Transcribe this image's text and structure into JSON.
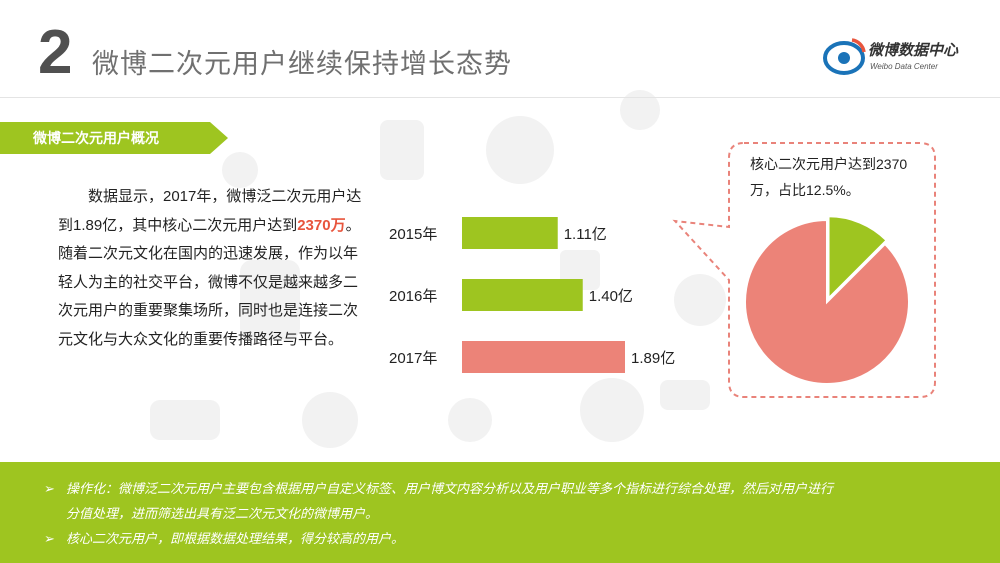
{
  "header": {
    "number": "2",
    "title": "微博二次元用户继续保持增长态势"
  },
  "logo": {
    "name": "微博数据中心",
    "subtitle": "Weibo Data Center",
    "icon": "weibo-eye-logo-icon"
  },
  "section": {
    "label": "微博二次元用户概况"
  },
  "paragraph": {
    "part1": "数据显示，2017年，微博泛二次元用户达到1.89亿，其中核心二次元用户达到",
    "highlight": "2370万",
    "part2": "。随着二次元文化在国内的迅速发展，作为以年轻人为主的社交平台，微博不仅是越来越多二次元用户的重要聚集场所，同时也是连接二次元文化与大众文化的重要传播路径与平台。"
  },
  "callout": {
    "text": "核心二次元用户达到2370万，占比12.5%。"
  },
  "chart_data": [
    {
      "type": "bar",
      "orientation": "horizontal",
      "categories": [
        "2015年",
        "2016年",
        "2017年"
      ],
      "values": [
        1.11,
        1.4,
        1.89
      ],
      "value_labels": [
        "1.11亿",
        "1.40亿",
        "1.89亿"
      ],
      "colors": [
        "#9ec520",
        "#9ec520",
        "#ec8378"
      ],
      "xlim": [
        0,
        1.89
      ],
      "grid": false
    },
    {
      "type": "pie",
      "slices": [
        {
          "value": 12.5,
          "color": "#9ec520"
        },
        {
          "value": 87.5,
          "color": "#ec8378"
        }
      ]
    }
  ],
  "footer": {
    "bullet": "➢",
    "note1_line1": "操作化：微博泛二次元用户主要包含根据用户自定义标签、用户博文内容分析以及用户职业等多个指标进行综合处理，然后对用户进行",
    "note1_line2": "分值处理，进而筛选出具有泛二次元文化的微博用户。",
    "note2": "核心二次元用户，即根据数据处理结果，得分较高的用户。"
  },
  "colors": {
    "accent_green": "#9ec520",
    "accent_red": "#ec8378",
    "highlight_red": "#e8553d",
    "callout_border": "#e9837a"
  }
}
